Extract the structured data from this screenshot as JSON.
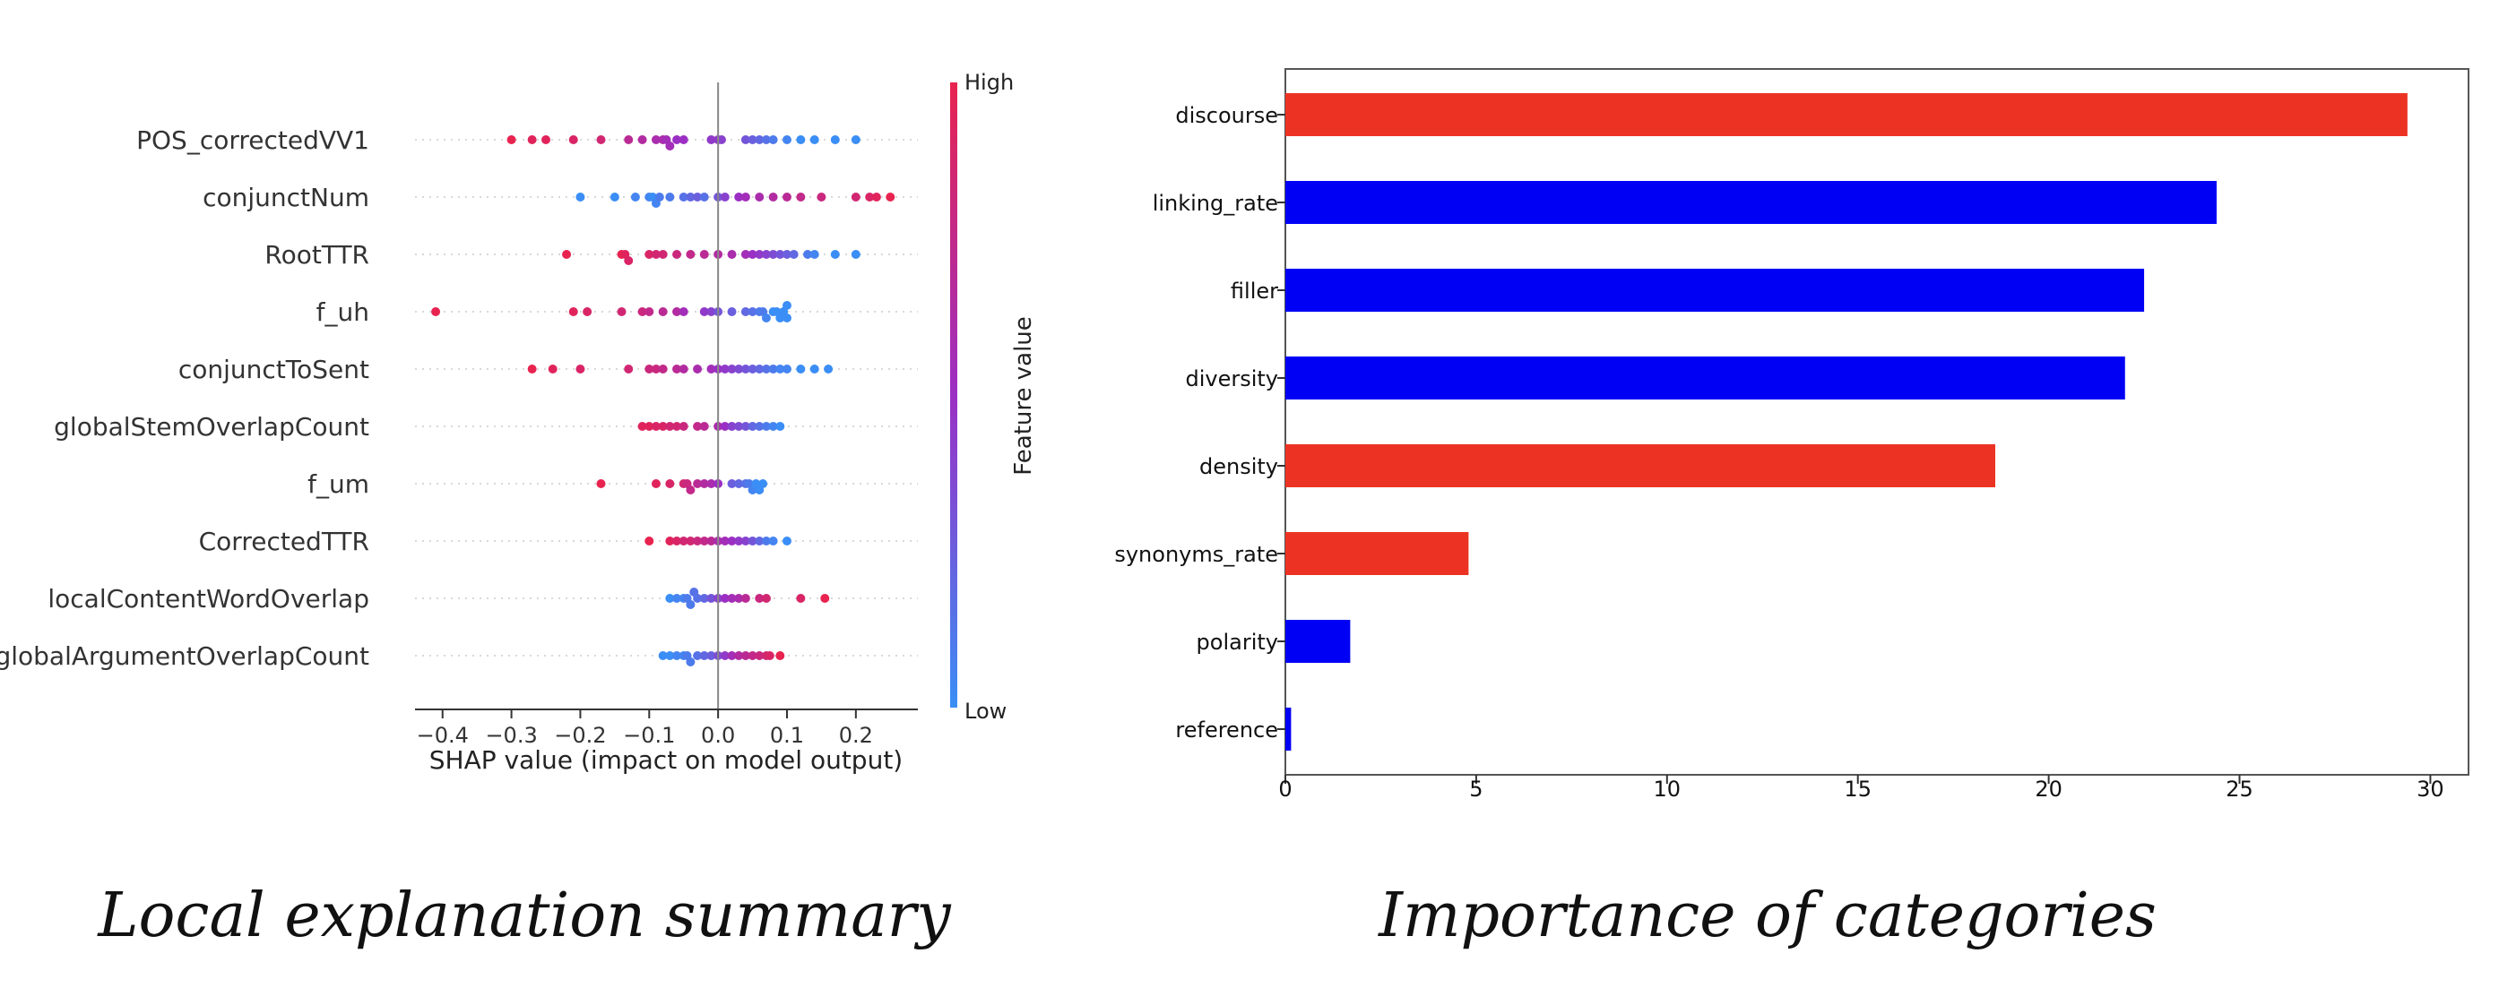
{
  "chart_data": [
    {
      "type": "scatter",
      "xlabel": "SHAP value (impact on model output)",
      "xlim": [
        -0.44,
        0.29
      ],
      "x_ticks": [
        -0.4,
        -0.3,
        -0.2,
        -0.1,
        0.0,
        0.1,
        0.2
      ],
      "x_tick_labels": [
        "−0.4",
        "−0.3",
        "−0.2",
        "−0.1",
        "0.0",
        "0.1",
        "0.2"
      ],
      "colorbar": {
        "label": "Feature value",
        "high_label": "High",
        "low_label": "Low",
        "high_color": "#e8234f",
        "low_color": "#3a8ef6"
      },
      "features": [
        {
          "name": "POS_correctedVV1",
          "points": [
            [
              -0.3,
              1.0
            ],
            [
              -0.27,
              0.95
            ],
            [
              -0.25,
              0.95
            ],
            [
              -0.21,
              0.9
            ],
            [
              -0.17,
              0.85
            ],
            [
              -0.13,
              0.7
            ],
            [
              -0.11,
              0.65
            ],
            [
              -0.09,
              0.6
            ],
            [
              -0.08,
              0.6
            ],
            [
              -0.075,
              0.55
            ],
            [
              -0.07,
              0.55
            ],
            [
              -0.06,
              0.5
            ],
            [
              -0.05,
              0.5
            ],
            [
              -0.01,
              0.45
            ],
            [
              0.0,
              0.45
            ],
            [
              0.005,
              0.4
            ],
            [
              0.04,
              0.3
            ],
            [
              0.05,
              0.25
            ],
            [
              0.06,
              0.2
            ],
            [
              0.07,
              0.15
            ],
            [
              0.08,
              0.1
            ],
            [
              0.1,
              0.05
            ],
            [
              0.12,
              0.0
            ],
            [
              0.14,
              0.0
            ],
            [
              0.17,
              0.0
            ],
            [
              0.2,
              0.0
            ]
          ]
        },
        {
          "name": "conjunctNum",
          "points": [
            [
              -0.2,
              0.0
            ],
            [
              -0.15,
              0.0
            ],
            [
              -0.12,
              0.05
            ],
            [
              -0.1,
              0.05
            ],
            [
              -0.095,
              0.0
            ],
            [
              -0.09,
              0.05
            ],
            [
              -0.085,
              0.1
            ],
            [
              -0.07,
              0.1
            ],
            [
              -0.05,
              0.15
            ],
            [
              -0.04,
              0.2
            ],
            [
              -0.03,
              0.25
            ],
            [
              -0.02,
              0.15
            ],
            [
              0.0,
              0.3
            ],
            [
              0.01,
              0.4
            ],
            [
              0.03,
              0.5
            ],
            [
              0.04,
              0.55
            ],
            [
              0.06,
              0.6
            ],
            [
              0.08,
              0.65
            ],
            [
              0.1,
              0.7
            ],
            [
              0.12,
              0.75
            ],
            [
              0.15,
              0.8
            ],
            [
              0.2,
              0.85
            ],
            [
              0.22,
              0.9
            ],
            [
              0.23,
              0.95
            ],
            [
              0.25,
              1.0
            ]
          ]
        },
        {
          "name": "RootTTR",
          "points": [
            [
              -0.22,
              1.0
            ],
            [
              -0.14,
              1.0
            ],
            [
              -0.135,
              0.95
            ],
            [
              -0.13,
              0.9
            ],
            [
              -0.1,
              0.9
            ],
            [
              -0.09,
              0.85
            ],
            [
              -0.08,
              0.85
            ],
            [
              -0.06,
              0.8
            ],
            [
              -0.04,
              0.75
            ],
            [
              -0.02,
              0.7
            ],
            [
              0.0,
              0.65
            ],
            [
              0.02,
              0.6
            ],
            [
              0.04,
              0.55
            ],
            [
              0.05,
              0.5
            ],
            [
              0.06,
              0.45
            ],
            [
              0.07,
              0.4
            ],
            [
              0.08,
              0.35
            ],
            [
              0.09,
              0.3
            ],
            [
              0.1,
              0.25
            ],
            [
              0.11,
              0.2
            ],
            [
              0.13,
              0.1
            ],
            [
              0.14,
              0.05
            ],
            [
              0.17,
              0.0
            ],
            [
              0.2,
              0.0
            ]
          ]
        },
        {
          "name": "f_uh",
          "points": [
            [
              -0.41,
              1.0
            ],
            [
              -0.21,
              0.95
            ],
            [
              -0.19,
              0.9
            ],
            [
              -0.14,
              0.85
            ],
            [
              -0.11,
              0.8
            ],
            [
              -0.1,
              0.75
            ],
            [
              -0.08,
              0.7
            ],
            [
              -0.06,
              0.65
            ],
            [
              -0.05,
              0.55
            ],
            [
              -0.02,
              0.45
            ],
            [
              -0.01,
              0.4
            ],
            [
              0.0,
              0.3
            ],
            [
              0.02,
              0.25
            ],
            [
              0.04,
              0.2
            ],
            [
              0.05,
              0.15
            ],
            [
              0.06,
              0.1
            ],
            [
              0.065,
              0.1
            ],
            [
              0.07,
              0.05
            ],
            [
              0.08,
              0.0
            ],
            [
              0.085,
              0.0
            ],
            [
              0.09,
              0.0
            ],
            [
              0.095,
              0.0
            ],
            [
              0.1,
              0.0
            ],
            [
              0.1,
              0.0
            ]
          ]
        },
        {
          "name": "conjunctToSent",
          "points": [
            [
              -0.27,
              1.0
            ],
            [
              -0.24,
              0.95
            ],
            [
              -0.2,
              0.9
            ],
            [
              -0.13,
              0.85
            ],
            [
              -0.1,
              0.8
            ],
            [
              -0.09,
              0.8
            ],
            [
              -0.08,
              0.75
            ],
            [
              -0.06,
              0.7
            ],
            [
              -0.05,
              0.65
            ],
            [
              -0.03,
              0.6
            ],
            [
              -0.01,
              0.55
            ],
            [
              0.0,
              0.5
            ],
            [
              0.01,
              0.45
            ],
            [
              0.02,
              0.4
            ],
            [
              0.03,
              0.35
            ],
            [
              0.04,
              0.3
            ],
            [
              0.05,
              0.25
            ],
            [
              0.06,
              0.2
            ],
            [
              0.07,
              0.15
            ],
            [
              0.08,
              0.1
            ],
            [
              0.09,
              0.05
            ],
            [
              0.1,
              0.05
            ],
            [
              0.12,
              0.0
            ],
            [
              0.14,
              0.0
            ],
            [
              0.16,
              0.0
            ]
          ]
        },
        {
          "name": "globalStemOverlapCount",
          "points": [
            [
              -0.11,
              0.95
            ],
            [
              -0.1,
              0.95
            ],
            [
              -0.09,
              0.9
            ],
            [
              -0.08,
              0.9
            ],
            [
              -0.07,
              0.85
            ],
            [
              -0.06,
              0.85
            ],
            [
              -0.05,
              0.8
            ],
            [
              -0.03,
              0.75
            ],
            [
              -0.02,
              0.7
            ],
            [
              0.0,
              0.6
            ],
            [
              0.01,
              0.5
            ],
            [
              0.02,
              0.4
            ],
            [
              0.03,
              0.35
            ],
            [
              0.04,
              0.3
            ],
            [
              0.05,
              0.2
            ],
            [
              0.06,
              0.15
            ],
            [
              0.07,
              0.1
            ],
            [
              0.08,
              0.05
            ],
            [
              0.09,
              0.0
            ]
          ]
        },
        {
          "name": "f_um",
          "points": [
            [
              -0.17,
              1.0
            ],
            [
              -0.09,
              0.95
            ],
            [
              -0.07,
              0.9
            ],
            [
              -0.05,
              0.85
            ],
            [
              -0.045,
              0.8
            ],
            [
              -0.04,
              0.75
            ],
            [
              -0.03,
              0.7
            ],
            [
              -0.02,
              0.65
            ],
            [
              -0.01,
              0.6
            ],
            [
              0.0,
              0.5
            ],
            [
              0.02,
              0.25
            ],
            [
              0.03,
              0.2
            ],
            [
              0.04,
              0.15
            ],
            [
              0.045,
              0.1
            ],
            [
              0.05,
              0.05
            ],
            [
              0.055,
              0.0
            ],
            [
              0.06,
              0.0
            ],
            [
              0.065,
              0.0
            ]
          ]
        },
        {
          "name": "CorrectedTTR",
          "points": [
            [
              -0.1,
              1.0
            ],
            [
              -0.07,
              0.95
            ],
            [
              -0.06,
              0.9
            ],
            [
              -0.05,
              0.85
            ],
            [
              -0.04,
              0.85
            ],
            [
              -0.03,
              0.8
            ],
            [
              -0.02,
              0.75
            ],
            [
              -0.01,
              0.7
            ],
            [
              0.0,
              0.6
            ],
            [
              0.01,
              0.55
            ],
            [
              0.02,
              0.5
            ],
            [
              0.03,
              0.45
            ],
            [
              0.04,
              0.4
            ],
            [
              0.05,
              0.3
            ],
            [
              0.06,
              0.2
            ],
            [
              0.07,
              0.1
            ],
            [
              0.08,
              0.05
            ],
            [
              0.1,
              0.0
            ]
          ]
        },
        {
          "name": "localContentWordOverlap",
          "points": [
            [
              -0.07,
              0.0
            ],
            [
              -0.06,
              0.05
            ],
            [
              -0.05,
              0.05
            ],
            [
              -0.045,
              0.1
            ],
            [
              -0.04,
              0.1
            ],
            [
              -0.035,
              0.15
            ],
            [
              -0.03,
              0.15
            ],
            [
              -0.02,
              0.2
            ],
            [
              -0.01,
              0.3
            ],
            [
              0.0,
              0.4
            ],
            [
              0.01,
              0.5
            ],
            [
              0.02,
              0.55
            ],
            [
              0.03,
              0.6
            ],
            [
              0.04,
              0.7
            ],
            [
              0.06,
              0.8
            ],
            [
              0.07,
              0.85
            ],
            [
              0.12,
              0.9
            ],
            [
              0.155,
              1.0
            ]
          ]
        },
        {
          "name": "globalArgumentOverlapCount",
          "points": [
            [
              -0.08,
              0.0
            ],
            [
              -0.07,
              0.0
            ],
            [
              -0.06,
              0.05
            ],
            [
              -0.05,
              0.05
            ],
            [
              -0.045,
              0.1
            ],
            [
              -0.04,
              0.1
            ],
            [
              -0.03,
              0.15
            ],
            [
              -0.02,
              0.2
            ],
            [
              -0.01,
              0.25
            ],
            [
              0.0,
              0.35
            ],
            [
              0.01,
              0.45
            ],
            [
              0.02,
              0.55
            ],
            [
              0.03,
              0.65
            ],
            [
              0.04,
              0.7
            ],
            [
              0.05,
              0.75
            ],
            [
              0.06,
              0.8
            ],
            [
              0.07,
              0.85
            ],
            [
              0.075,
              0.9
            ],
            [
              0.09,
              1.0
            ]
          ]
        }
      ],
      "caption": "Local explanation summary"
    },
    {
      "type": "bar",
      "orientation": "horizontal",
      "categories": [
        "discourse",
        "linking_rate",
        "filler",
        "diversity",
        "density",
        "synonyms_rate",
        "polarity",
        "reference"
      ],
      "values": [
        29.4,
        24.4,
        22.5,
        22.0,
        18.6,
        4.8,
        1.7,
        0.15
      ],
      "colors": [
        "#ec3323",
        "#0000f5",
        "#0000f5",
        "#0000f5",
        "#ec3323",
        "#ec3323",
        "#0000f5",
        "#0000f5"
      ],
      "xlim": [
        0,
        31
      ],
      "x_ticks": [
        0,
        5,
        10,
        15,
        20,
        25,
        30
      ],
      "caption": "Importance of categories"
    }
  ]
}
